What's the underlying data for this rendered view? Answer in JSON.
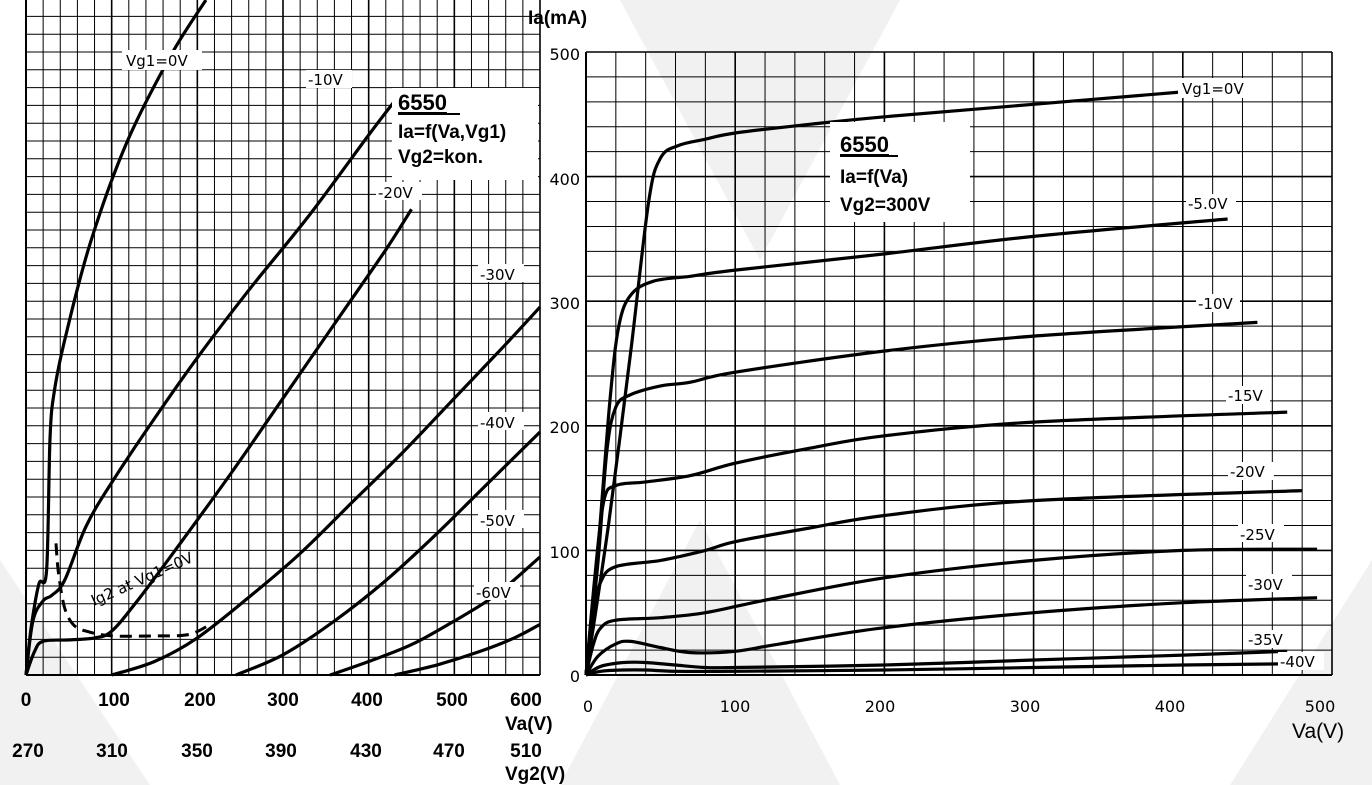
{
  "colors": {
    "background": "#ffffff",
    "grid": "#000000",
    "curve": "#000000",
    "watermark": "#f0f0f0"
  },
  "chart_data": [
    {
      "type": "line",
      "title": "6550",
      "subtitle_lines": [
        "Ia=f(Va,Vg1)",
        "Vg2=kon."
      ],
      "xlabel": "Va(V)",
      "x2label": "Vg2(V)",
      "xlim": [
        0,
        600
      ],
      "x_ticks": [
        "0",
        "100",
        "200",
        "300",
        "400",
        "500",
        "600"
      ],
      "x2_ticks": [
        "270",
        "310",
        "350",
        "390",
        "430",
        "470",
        "510"
      ],
      "annotation": "Ig2 at Vg1=0V",
      "series": [
        {
          "name": "Vg1=0V",
          "points": [
            [
              0,
              0
            ],
            [
              6,
              70
            ],
            [
              15,
              135
            ],
            [
              24,
              155
            ],
            [
              28,
              350
            ],
            [
              33,
              420
            ],
            [
              45,
              495
            ],
            [
              75,
              640
            ],
            [
              118,
              790
            ],
            [
              170,
              920
            ],
            [
              210,
              1000
            ]
          ]
        },
        {
          "name": "-10V",
          "points": [
            [
              0,
              0
            ],
            [
              8,
              80
            ],
            [
              20,
              110
            ],
            [
              30,
              118
            ],
            [
              45,
              140
            ],
            [
              70,
              220
            ],
            [
              100,
              285
            ],
            [
              150,
              380
            ],
            [
              200,
              470
            ],
            [
              260,
              570
            ],
            [
              330,
              680
            ],
            [
              400,
              800
            ],
            [
              430,
              850
            ]
          ]
        },
        {
          "name": "-20V",
          "points": [
            [
              0,
              0
            ],
            [
              10,
              35
            ],
            [
              20,
              50
            ],
            [
              50,
              52
            ],
            [
              80,
              55
            ],
            [
              100,
              65
            ],
            [
              130,
              110
            ],
            [
              180,
              195
            ],
            [
              240,
              300
            ],
            [
              300,
              410
            ],
            [
              360,
              520
            ],
            [
              420,
              630
            ],
            [
              450,
              690
            ]
          ]
        },
        {
          "name": "-30V",
          "points": [
            [
              100,
              0
            ],
            [
              150,
              20
            ],
            [
              200,
              55
            ],
            [
              260,
              115
            ],
            [
              320,
              180
            ],
            [
              380,
              255
            ],
            [
              440,
              330
            ],
            [
              500,
              410
            ],
            [
              560,
              490
            ],
            [
              600,
              545
            ]
          ]
        },
        {
          "name": "-40V",
          "points": [
            [
              245,
              0
            ],
            [
              300,
              30
            ],
            [
              360,
              80
            ],
            [
              420,
              140
            ],
            [
              480,
              210
            ],
            [
              540,
              285
            ],
            [
              600,
              360
            ]
          ]
        },
        {
          "name": "-50V",
          "points": [
            [
              355,
              0
            ],
            [
              400,
              20
            ],
            [
              450,
              45
            ],
            [
              500,
              80
            ],
            [
              550,
              120
            ],
            [
              600,
              175
            ]
          ]
        },
        {
          "name": "-60V",
          "points": [
            [
              430,
              0
            ],
            [
              480,
              15
            ],
            [
              530,
              35
            ],
            [
              570,
              55
            ],
            [
              600,
              75
            ]
          ]
        }
      ],
      "ig2_points": [
        [
          35,
          195
        ],
        [
          38,
          150
        ],
        [
          45,
          100
        ],
        [
          55,
          75
        ],
        [
          70,
          65
        ],
        [
          100,
          58
        ],
        [
          150,
          58
        ],
        [
          190,
          60
        ],
        [
          215,
          75
        ]
      ]
    },
    {
      "type": "line",
      "title": "6550",
      "subtitle_lines": [
        "Ia=f(Va)",
        "Vg2=300V"
      ],
      "xlabel": "Va(V)",
      "ylabel": "Ia(mA)",
      "xlim": [
        0,
        500
      ],
      "ylim": [
        0,
        500
      ],
      "x_ticks": [
        "0",
        "100",
        "200",
        "300",
        "400",
        "500"
      ],
      "y_ticks": [
        "0",
        "100",
        "200",
        "300",
        "400",
        "500"
      ],
      "series": [
        {
          "name": "Vg1=0V",
          "points": [
            [
              0,
              0
            ],
            [
              15,
              120
            ],
            [
              30,
              260
            ],
            [
              42,
              380
            ],
            [
              50,
              415
            ],
            [
              62,
              425
            ],
            [
              80,
              430
            ],
            [
              100,
              435
            ],
            [
              150,
              442
            ],
            [
              200,
              448
            ],
            [
              300,
              458
            ],
            [
              400,
              468
            ]
          ]
        },
        {
          "name": "-5.0V",
          "points": [
            [
              0,
              0
            ],
            [
              8,
              100
            ],
            [
              16,
              220
            ],
            [
              22,
              280
            ],
            [
              30,
              305
            ],
            [
              45,
              316
            ],
            [
              70,
              320
            ],
            [
              100,
              325
            ],
            [
              200,
              338
            ],
            [
              300,
              352
            ],
            [
              430,
              366
            ]
          ]
        },
        {
          "name": "-10V",
          "points": [
            [
              0,
              0
            ],
            [
              8,
              90
            ],
            [
              14,
              180
            ],
            [
              20,
              215
            ],
            [
              30,
              225
            ],
            [
              50,
              232
            ],
            [
              70,
              235
            ],
            [
              100,
              243
            ],
            [
              200,
              260
            ],
            [
              300,
              272
            ],
            [
              450,
              283
            ]
          ]
        },
        {
          "name": "-15V",
          "points": [
            [
              0,
              0
            ],
            [
              6,
              80
            ],
            [
              12,
              140
            ],
            [
              20,
              152
            ],
            [
              40,
              155
            ],
            [
              70,
              160
            ],
            [
              100,
              170
            ],
            [
              150,
              182
            ],
            [
              200,
              192
            ],
            [
              300,
              203
            ],
            [
              470,
              211
            ]
          ]
        },
        {
          "name": "-20V",
          "points": [
            [
              0,
              0
            ],
            [
              5,
              50
            ],
            [
              10,
              75
            ],
            [
              20,
              87
            ],
            [
              50,
              92
            ],
            [
              80,
              100
            ],
            [
              100,
              107
            ],
            [
              150,
              118
            ],
            [
              200,
              128
            ],
            [
              300,
              140
            ],
            [
              480,
              148
            ]
          ]
        },
        {
          "name": "-25V",
          "points": [
            [
              0,
              0
            ],
            [
              5,
              25
            ],
            [
              10,
              38
            ],
            [
              20,
              44
            ],
            [
              50,
              46
            ],
            [
              80,
              50
            ],
            [
              120,
              60
            ],
            [
              200,
              78
            ],
            [
              300,
              92
            ],
            [
              400,
              100
            ],
            [
              490,
              101
            ]
          ]
        },
        {
          "name": "-30V",
          "points": [
            [
              0,
              0
            ],
            [
              8,
              15
            ],
            [
              20,
              25
            ],
            [
              30,
              27
            ],
            [
              50,
              22
            ],
            [
              70,
              18
            ],
            [
              100,
              19
            ],
            [
              130,
              25
            ],
            [
              200,
              38
            ],
            [
              300,
              50
            ],
            [
              400,
              58
            ],
            [
              490,
              62
            ]
          ]
        },
        {
          "name": "-35V",
          "points": [
            [
              0,
              0
            ],
            [
              10,
              7
            ],
            [
              25,
              10
            ],
            [
              40,
              10
            ],
            [
              60,
              8
            ],
            [
              80,
              6
            ],
            [
              100,
              6
            ],
            [
              200,
              8
            ],
            [
              300,
              12
            ],
            [
              400,
              16
            ],
            [
              470,
              19
            ]
          ]
        },
        {
          "name": "-40V",
          "points": [
            [
              0,
              0
            ],
            [
              10,
              3
            ],
            [
              25,
              4
            ],
            [
              40,
              4
            ],
            [
              60,
              3
            ],
            [
              100,
              3
            ],
            [
              200,
              4
            ],
            [
              300,
              6
            ],
            [
              400,
              8
            ],
            [
              470,
              9
            ]
          ]
        }
      ]
    }
  ]
}
